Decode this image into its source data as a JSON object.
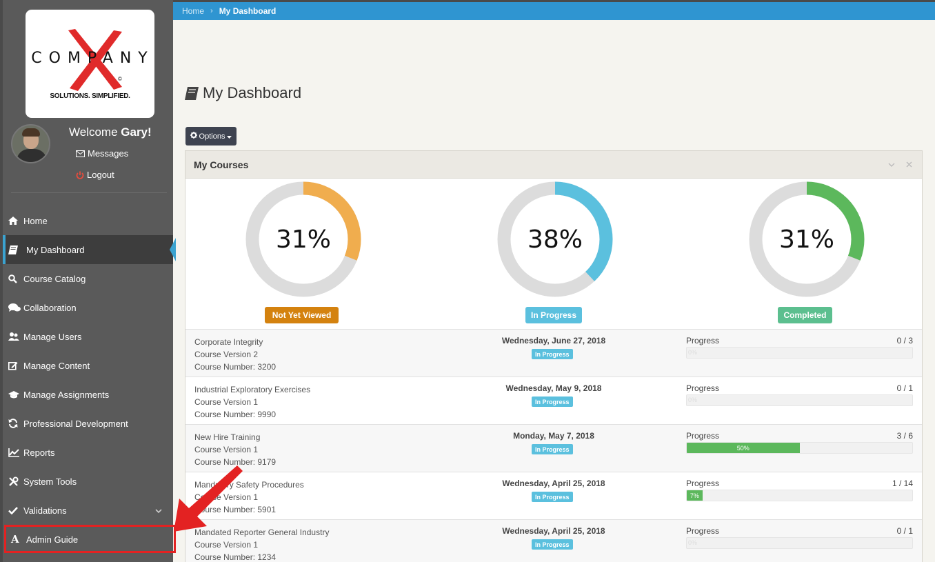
{
  "brand": {
    "logo_word": "COMPANY",
    "logo_tagline": "SOLUTIONS. SIMPLIFIED.",
    "logo_mark": "©"
  },
  "user": {
    "welcome_prefix": "Welcome ",
    "name": "Gary!",
    "messages_label": "Messages",
    "logout_label": "Logout"
  },
  "sidebar": {
    "items": [
      {
        "label": "Home",
        "icon": "home-icon"
      },
      {
        "label": "My Dashboard",
        "icon": "book-icon",
        "active": true
      },
      {
        "label": "Course Catalog",
        "icon": "search-icon"
      },
      {
        "label": "Collaboration",
        "icon": "comments-icon"
      },
      {
        "label": "Manage Users",
        "icon": "users-icon"
      },
      {
        "label": "Manage Content",
        "icon": "edit-icon"
      },
      {
        "label": "Manage Assignments",
        "icon": "graduation-cap-icon"
      },
      {
        "label": "Professional Development",
        "icon": "refresh-icon"
      },
      {
        "label": "Reports",
        "icon": "line-chart-icon"
      },
      {
        "label": "System Tools",
        "icon": "tools-icon"
      },
      {
        "label": "Validations",
        "icon": "check-icon",
        "has_caret": true
      },
      {
        "label": "Admin Guide",
        "icon": "font-a-icon",
        "highlighted": true
      }
    ]
  },
  "breadcrumb": {
    "home": "Home",
    "separator": "›",
    "current": "My Dashboard"
  },
  "page": {
    "title": "My Dashboard",
    "options_label": "Options"
  },
  "panel": {
    "title": "My Courses",
    "donuts": [
      {
        "value": "31%",
        "fraction": 0.31,
        "label": "Not Yet Viewed",
        "color": "#f0ad4e",
        "badge_color": "#d4820f"
      },
      {
        "value": "38%",
        "fraction": 0.38,
        "label": "In Progress",
        "color": "#5bc0de",
        "badge_color": "#5bc0de"
      },
      {
        "value": "31%",
        "fraction": 0.31,
        "label": "Completed",
        "color": "#5cb85c",
        "badge_color": "#5cbf8f"
      }
    ],
    "courses": [
      {
        "name": "Corporate Integrity",
        "version": "Course Version 2",
        "number": "Course Number: 3200",
        "date": "Wednesday, June 27, 2018",
        "status": "In Progress",
        "progress_label": "Progress",
        "count": "0 / 3",
        "percent": 0,
        "percent_text": "0%"
      },
      {
        "name": "Industrial Exploratory Exercises",
        "version": "Course Version 1",
        "number": "Course Number: 9990",
        "date": "Wednesday, May 9, 2018",
        "status": "In Progress",
        "progress_label": "Progress",
        "count": "0 / 1",
        "percent": 0,
        "percent_text": "0%"
      },
      {
        "name": "New Hire Training",
        "version": "Course Version 1",
        "number": "Course Number: 9179",
        "date": "Monday, May 7, 2018",
        "status": "In Progress",
        "progress_label": "Progress",
        "count": "3 / 6",
        "percent": 50,
        "percent_text": "50%"
      },
      {
        "name": "Mandatory Safety Procedures",
        "version": "Course Version 1",
        "number": "Course Number: 5901",
        "date": "Wednesday, April 25, 2018",
        "status": "In Progress",
        "progress_label": "Progress",
        "count": "1 / 14",
        "percent": 7,
        "percent_text": "7%"
      },
      {
        "name": "Mandated Reporter General Industry",
        "version": "Course Version 1",
        "number": "Course Number: 1234",
        "date": "Wednesday, April 25, 2018",
        "status": "In Progress",
        "progress_label": "Progress",
        "count": "0 / 1",
        "percent": 0,
        "percent_text": "0%"
      }
    ]
  },
  "annotation": {
    "arrow_color": "#e32222"
  }
}
